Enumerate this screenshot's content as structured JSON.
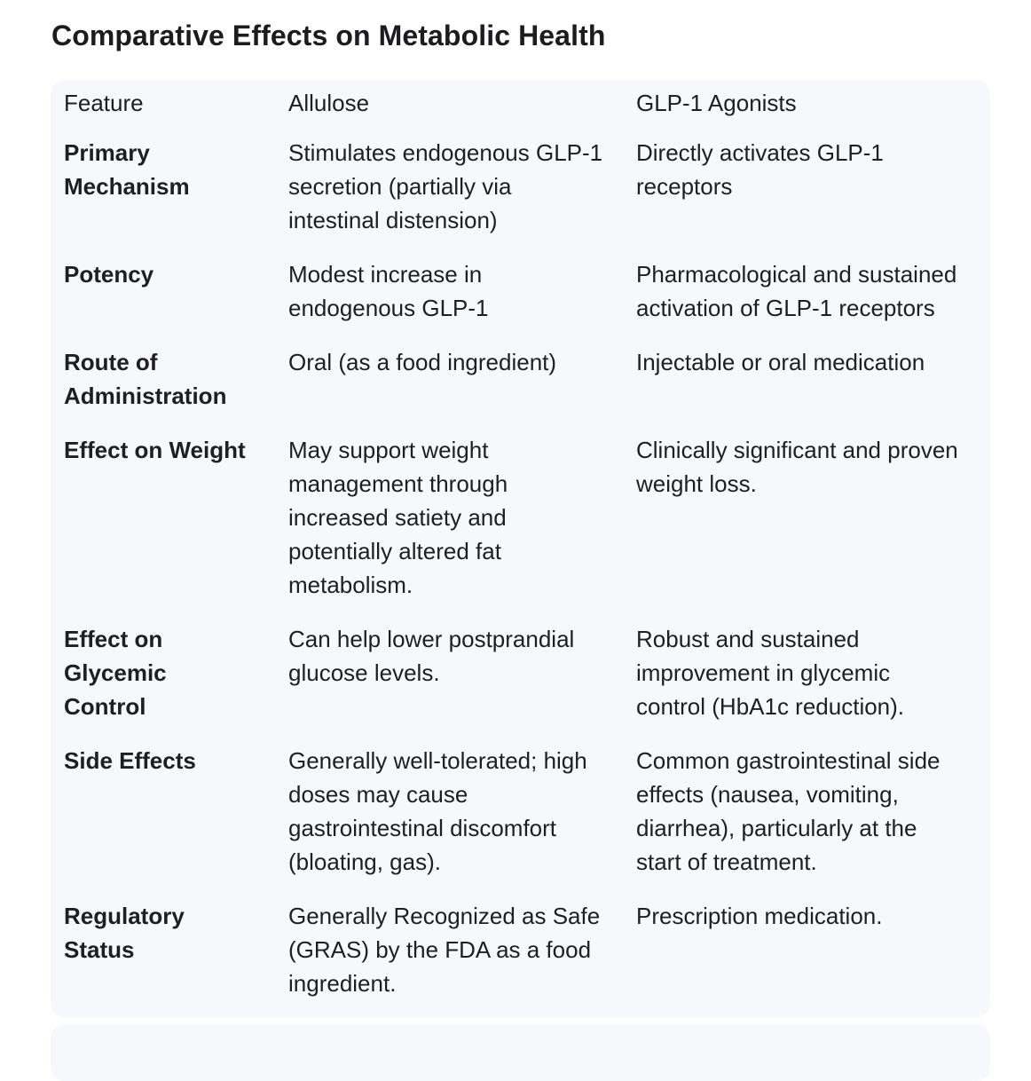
{
  "page": {
    "title": "Comparative Effects on Metabolic Health"
  },
  "table": {
    "headers": [
      "Feature",
      "Allulose",
      "GLP-1 Agonists"
    ],
    "rows": [
      {
        "feature": "Primary Mechanism",
        "allulose": "Stimulates endogenous GLP-1 secretion (partially via intestinal distension)",
        "glp1": "Directly activates GLP-1 receptors"
      },
      {
        "feature": "Potency",
        "allulose": "Modest increase in endogenous GLP-1",
        "glp1": "Pharmacological and sustained activation of GLP-1 receptors"
      },
      {
        "feature": "Route of Administration",
        "allulose": "Oral (as a food ingredient)",
        "glp1": "Injectable or oral medication"
      },
      {
        "feature": "Effect on Weight",
        "allulose": "May support weight management through increased satiety and potentially altered fat metabolism.",
        "glp1": "Clinically significant and proven weight loss."
      },
      {
        "feature": "Effect on Glycemic Control",
        "allulose": "Can help lower postprandial glucose levels.",
        "glp1": "Robust and sustained improvement in glycemic control (HbA1c reduction)."
      },
      {
        "feature": "Side Effects",
        "allulose": "Generally well-tolerated; high doses may cause gastrointestinal discomfort (bloating, gas).",
        "glp1": "Common gastrointestinal side effects (nausea, vomiting, diarrhea), particularly at the start of treatment."
      },
      {
        "feature": "Regulatory Status",
        "allulose": "Generally Recognized as Safe (GRAS) by the FDA as a food ingredient.",
        "glp1": "Prescription medication."
      }
    ]
  },
  "colors": {
    "card_bg": "#f6f8fc",
    "text_color": "#1f1f1f",
    "title_color": "#1c1c1e"
  }
}
